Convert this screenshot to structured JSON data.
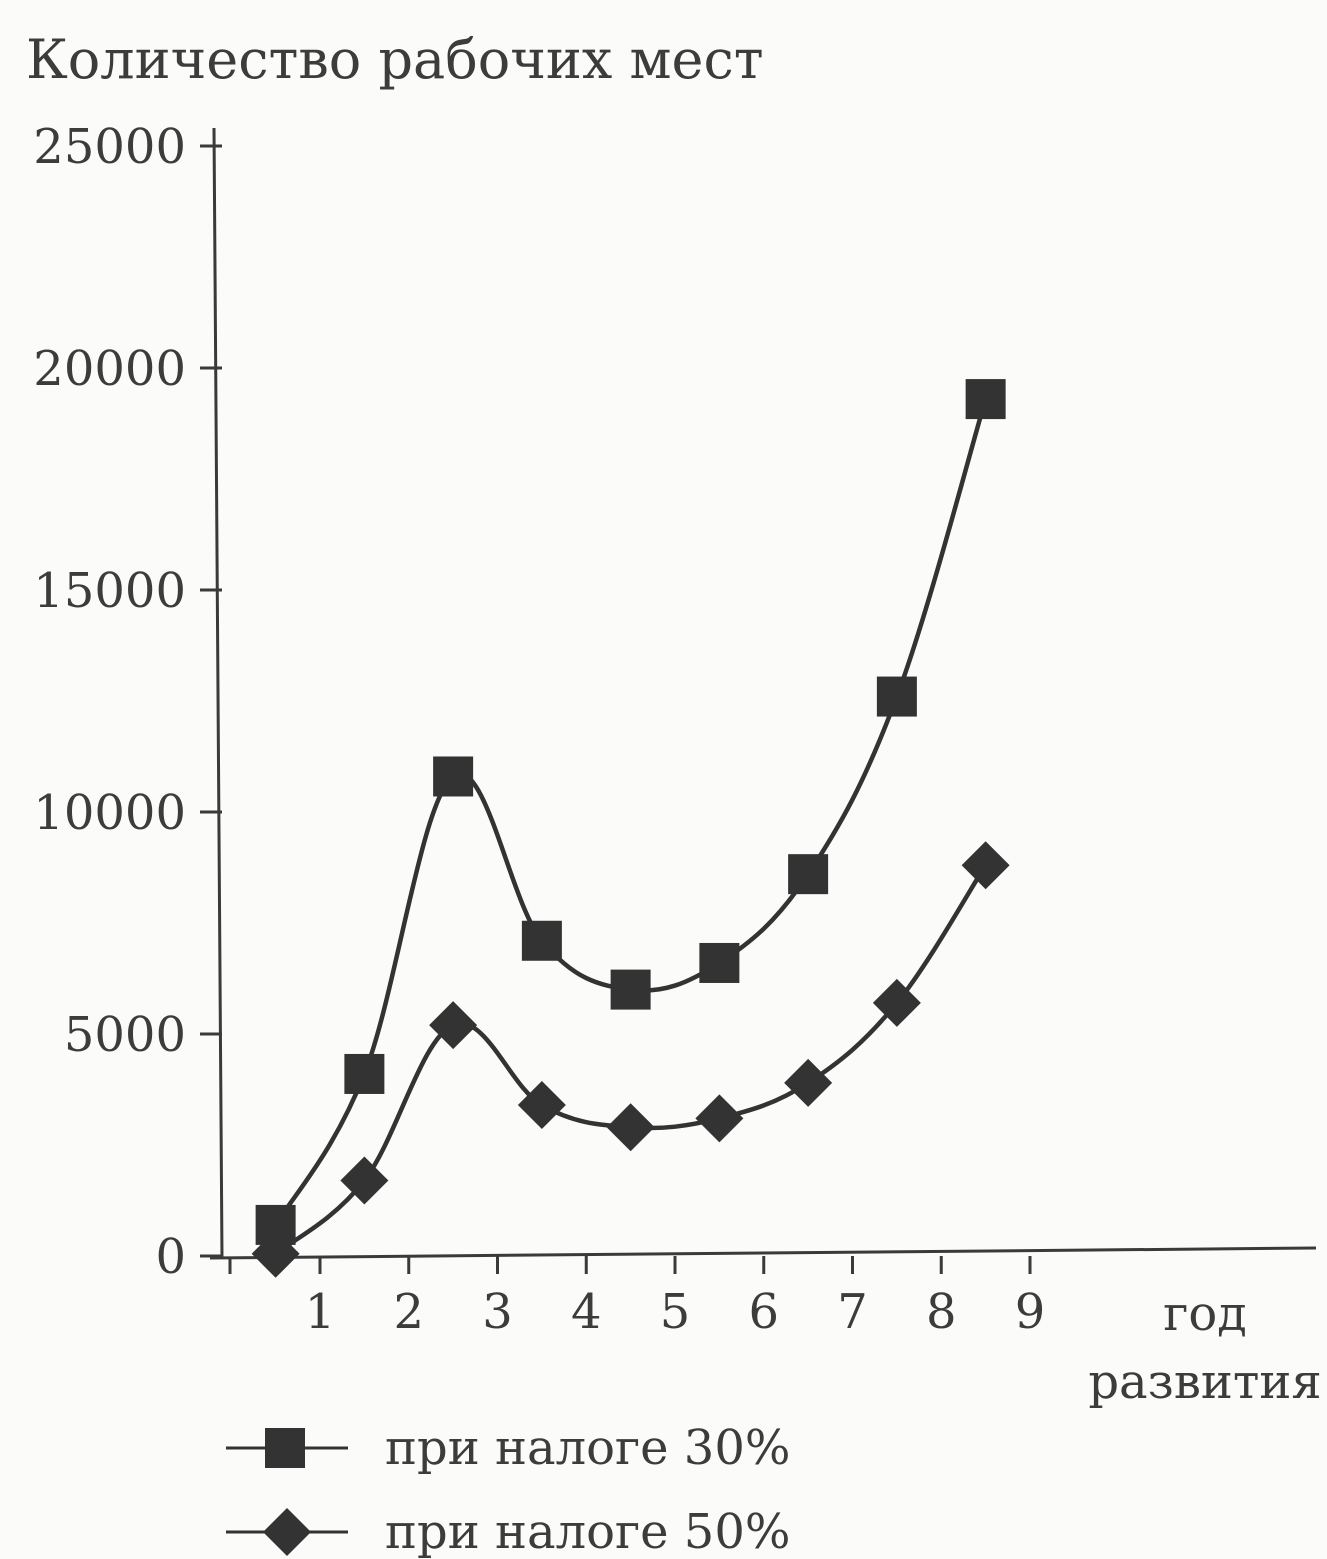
{
  "chart_data": {
    "type": "line",
    "ylabel": "Количество рабочих мест",
    "xlabel_line1": "год",
    "xlabel_line2": "развития",
    "ylim": [
      0,
      25000
    ],
    "yticks": [
      "25000",
      "20000",
      "15000",
      "10000",
      "5000",
      "0"
    ],
    "ytick_values": [
      25000,
      20000,
      15000,
      10000,
      5000,
      0
    ],
    "xticks": [
      "1",
      "2",
      "3",
      "4",
      "5",
      "6",
      "7",
      "8",
      "9"
    ],
    "x": [
      0.5,
      1.5,
      2.5,
      3.5,
      4.5,
      5.5,
      6.5,
      7.5,
      8.5
    ],
    "series": [
      {
        "name": "при налоге 30%",
        "marker": "square",
        "values": [
          700,
          4100,
          10800,
          7100,
          6000,
          6600,
          8600,
          12600,
          19300
        ]
      },
      {
        "name": "при налоге 50%",
        "marker": "diamond",
        "values": [
          50,
          1700,
          5200,
          3400,
          2900,
          3100,
          3900,
          5700,
          8800
        ]
      }
    ],
    "grid": false,
    "legend_position": "bottom-left"
  }
}
